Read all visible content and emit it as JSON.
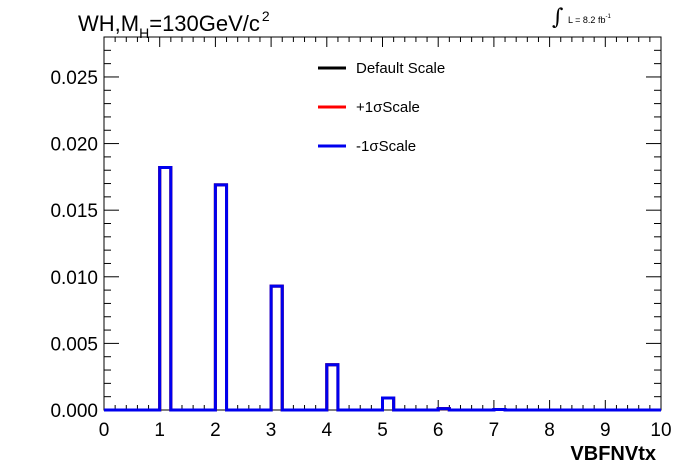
{
  "title": {
    "prefix": "WH,M",
    "sub": "H",
    "rest": "=130GeV/c",
    "sup": "2"
  },
  "lumi": {
    "integral": "∫",
    "text": "L = 8.2 fb",
    "sup": "-1"
  },
  "colors": {
    "default": "#000000",
    "plus": "#ff0000",
    "minus": "#0000ee",
    "frame": "#000000"
  },
  "chart_data": {
    "type": "line",
    "xlabel": "VBFNVtx",
    "ylabel": "",
    "xlim": [
      0,
      10
    ],
    "ylim": [
      0,
      0.028
    ],
    "x_ticks": [
      "0",
      "1",
      "2",
      "3",
      "4",
      "5",
      "6",
      "7",
      "8",
      "9",
      "10"
    ],
    "y_ticks": [
      "0.000",
      "0.005",
      "0.010",
      "0.015",
      "0.020",
      "0.025"
    ],
    "bin_width": 0.2,
    "legend_position": "top-center",
    "series": [
      {
        "name": "Default Scale",
        "color": "#000000",
        "bins": [
          {
            "x": 1,
            "y": 0.0182
          },
          {
            "x": 2,
            "y": 0.0169
          },
          {
            "x": 3,
            "y": 0.0093
          },
          {
            "x": 4,
            "y": 0.0034
          },
          {
            "x": 5,
            "y": 0.0009
          },
          {
            "x": 6,
            "y": 0.0001
          },
          {
            "x": 7,
            "y": 4e-05
          }
        ]
      },
      {
        "name": "+1σScale",
        "color": "#ff0000",
        "bins": [
          {
            "x": 1,
            "y": 0.0182
          },
          {
            "x": 2,
            "y": 0.0169
          },
          {
            "x": 3,
            "y": 0.0093
          },
          {
            "x": 4,
            "y": 0.0034
          },
          {
            "x": 5,
            "y": 0.0009
          },
          {
            "x": 6,
            "y": 0.0001
          },
          {
            "x": 7,
            "y": 4e-05
          }
        ]
      },
      {
        "name": "-1σScale",
        "color": "#0000ee",
        "bins": [
          {
            "x": 1,
            "y": 0.0182
          },
          {
            "x": 2,
            "y": 0.0169
          },
          {
            "x": 3,
            "y": 0.0093
          },
          {
            "x": 4,
            "y": 0.0034
          },
          {
            "x": 5,
            "y": 0.0009
          },
          {
            "x": 6,
            "y": 0.0001
          },
          {
            "x": 7,
            "y": 4e-05
          }
        ]
      }
    ]
  }
}
